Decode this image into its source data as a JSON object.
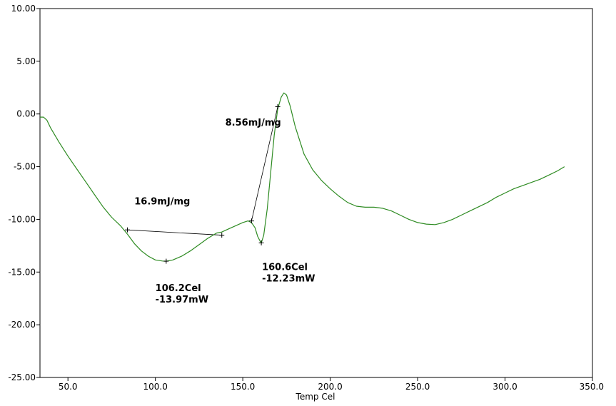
{
  "chart_data": {
    "type": "line",
    "xlabel": "Temp Cel",
    "ylabel": "",
    "xlim": [
      34,
      350
    ],
    "ylim": [
      -25,
      10
    ],
    "x_ticks": [
      50,
      100,
      150,
      200,
      250,
      300,
      350
    ],
    "x_tick_labels": [
      "50.0",
      "100.0",
      "150.0",
      "200.0",
      "250.0",
      "300.0",
      "350.0"
    ],
    "y_ticks": [
      10,
      5,
      0,
      -5,
      -10,
      -15,
      -20,
      -25
    ],
    "y_tick_labels": [
      "10.00",
      "5.00",
      "0.00",
      "-5.00",
      "-10.00",
      "-15.00",
      "-20.00",
      "-25.00"
    ],
    "grid": false,
    "line_color": "#2e8b22",
    "series": [
      {
        "x": [
          34,
          36,
          38,
          40,
          45,
          50,
          55,
          60,
          65,
          70,
          75,
          80,
          84,
          88,
          92,
          96,
          100,
          104,
          106.2,
          110,
          115,
          120,
          125,
          130,
          135,
          138,
          142,
          146,
          150,
          153,
          155,
          157,
          158.5,
          160,
          160.6,
          162,
          164,
          166,
          168,
          170,
          172,
          173.5,
          175,
          177,
          180,
          185,
          190,
          195,
          200,
          205,
          210,
          215,
          220,
          225,
          230,
          235,
          240,
          245,
          250,
          255,
          260,
          265,
          270,
          275,
          280,
          285,
          290,
          295,
          300,
          305,
          310,
          315,
          320,
          325,
          330,
          334
        ],
        "y": [
          -0.3,
          -0.3,
          -0.6,
          -1.3,
          -2.7,
          -4.0,
          -5.2,
          -6.4,
          -7.6,
          -8.8,
          -9.8,
          -10.6,
          -11.4,
          -12.3,
          -13.0,
          -13.5,
          -13.85,
          -13.95,
          -13.97,
          -13.85,
          -13.5,
          -13.0,
          -12.4,
          -11.8,
          -11.3,
          -11.2,
          -10.9,
          -10.6,
          -10.3,
          -10.15,
          -10.3,
          -10.8,
          -11.6,
          -12.1,
          -12.23,
          -11.5,
          -9.0,
          -5.5,
          -2.0,
          0.5,
          1.6,
          2.0,
          1.8,
          0.8,
          -1.2,
          -3.8,
          -5.3,
          -6.3,
          -7.1,
          -7.8,
          -8.4,
          -8.75,
          -8.85,
          -8.85,
          -8.95,
          -9.2,
          -9.6,
          -10.0,
          -10.3,
          -10.45,
          -10.5,
          -10.3,
          -10.0,
          -9.6,
          -9.2,
          -8.8,
          -8.4,
          -7.9,
          -7.5,
          -7.1,
          -6.8,
          -6.5,
          -6.2,
          -5.8,
          -5.4,
          -5.0
        ]
      }
    ],
    "baselines": [
      {
        "x": [
          84,
          138
        ],
        "y": [
          -11.0,
          -11.5
        ]
      },
      {
        "x": [
          155,
          170
        ],
        "y": [
          -10.15,
          0.7
        ]
      }
    ],
    "markers": [
      {
        "x": 84,
        "y": -11.0
      },
      {
        "x": 106.2,
        "y": -13.97
      },
      {
        "x": 138,
        "y": -11.5
      },
      {
        "x": 155,
        "y": -10.15
      },
      {
        "x": 160.6,
        "y": -12.23
      },
      {
        "x": 170,
        "y": 0.7
      }
    ],
    "annotations": [
      {
        "lines": [
          "16.9mJ/mg"
        ],
        "x": 88,
        "y": -8.6
      },
      {
        "lines": [
          "106.2Cel",
          "-13.97mW"
        ],
        "x": 100,
        "y": -16.8
      },
      {
        "lines": [
          "160.6Cel",
          "-12.23mW"
        ],
        "x": 161,
        "y": -14.8
      },
      {
        "lines": [
          "8.56mJ/mg"
        ],
        "x": 140,
        "y": -1.1
      }
    ]
  }
}
